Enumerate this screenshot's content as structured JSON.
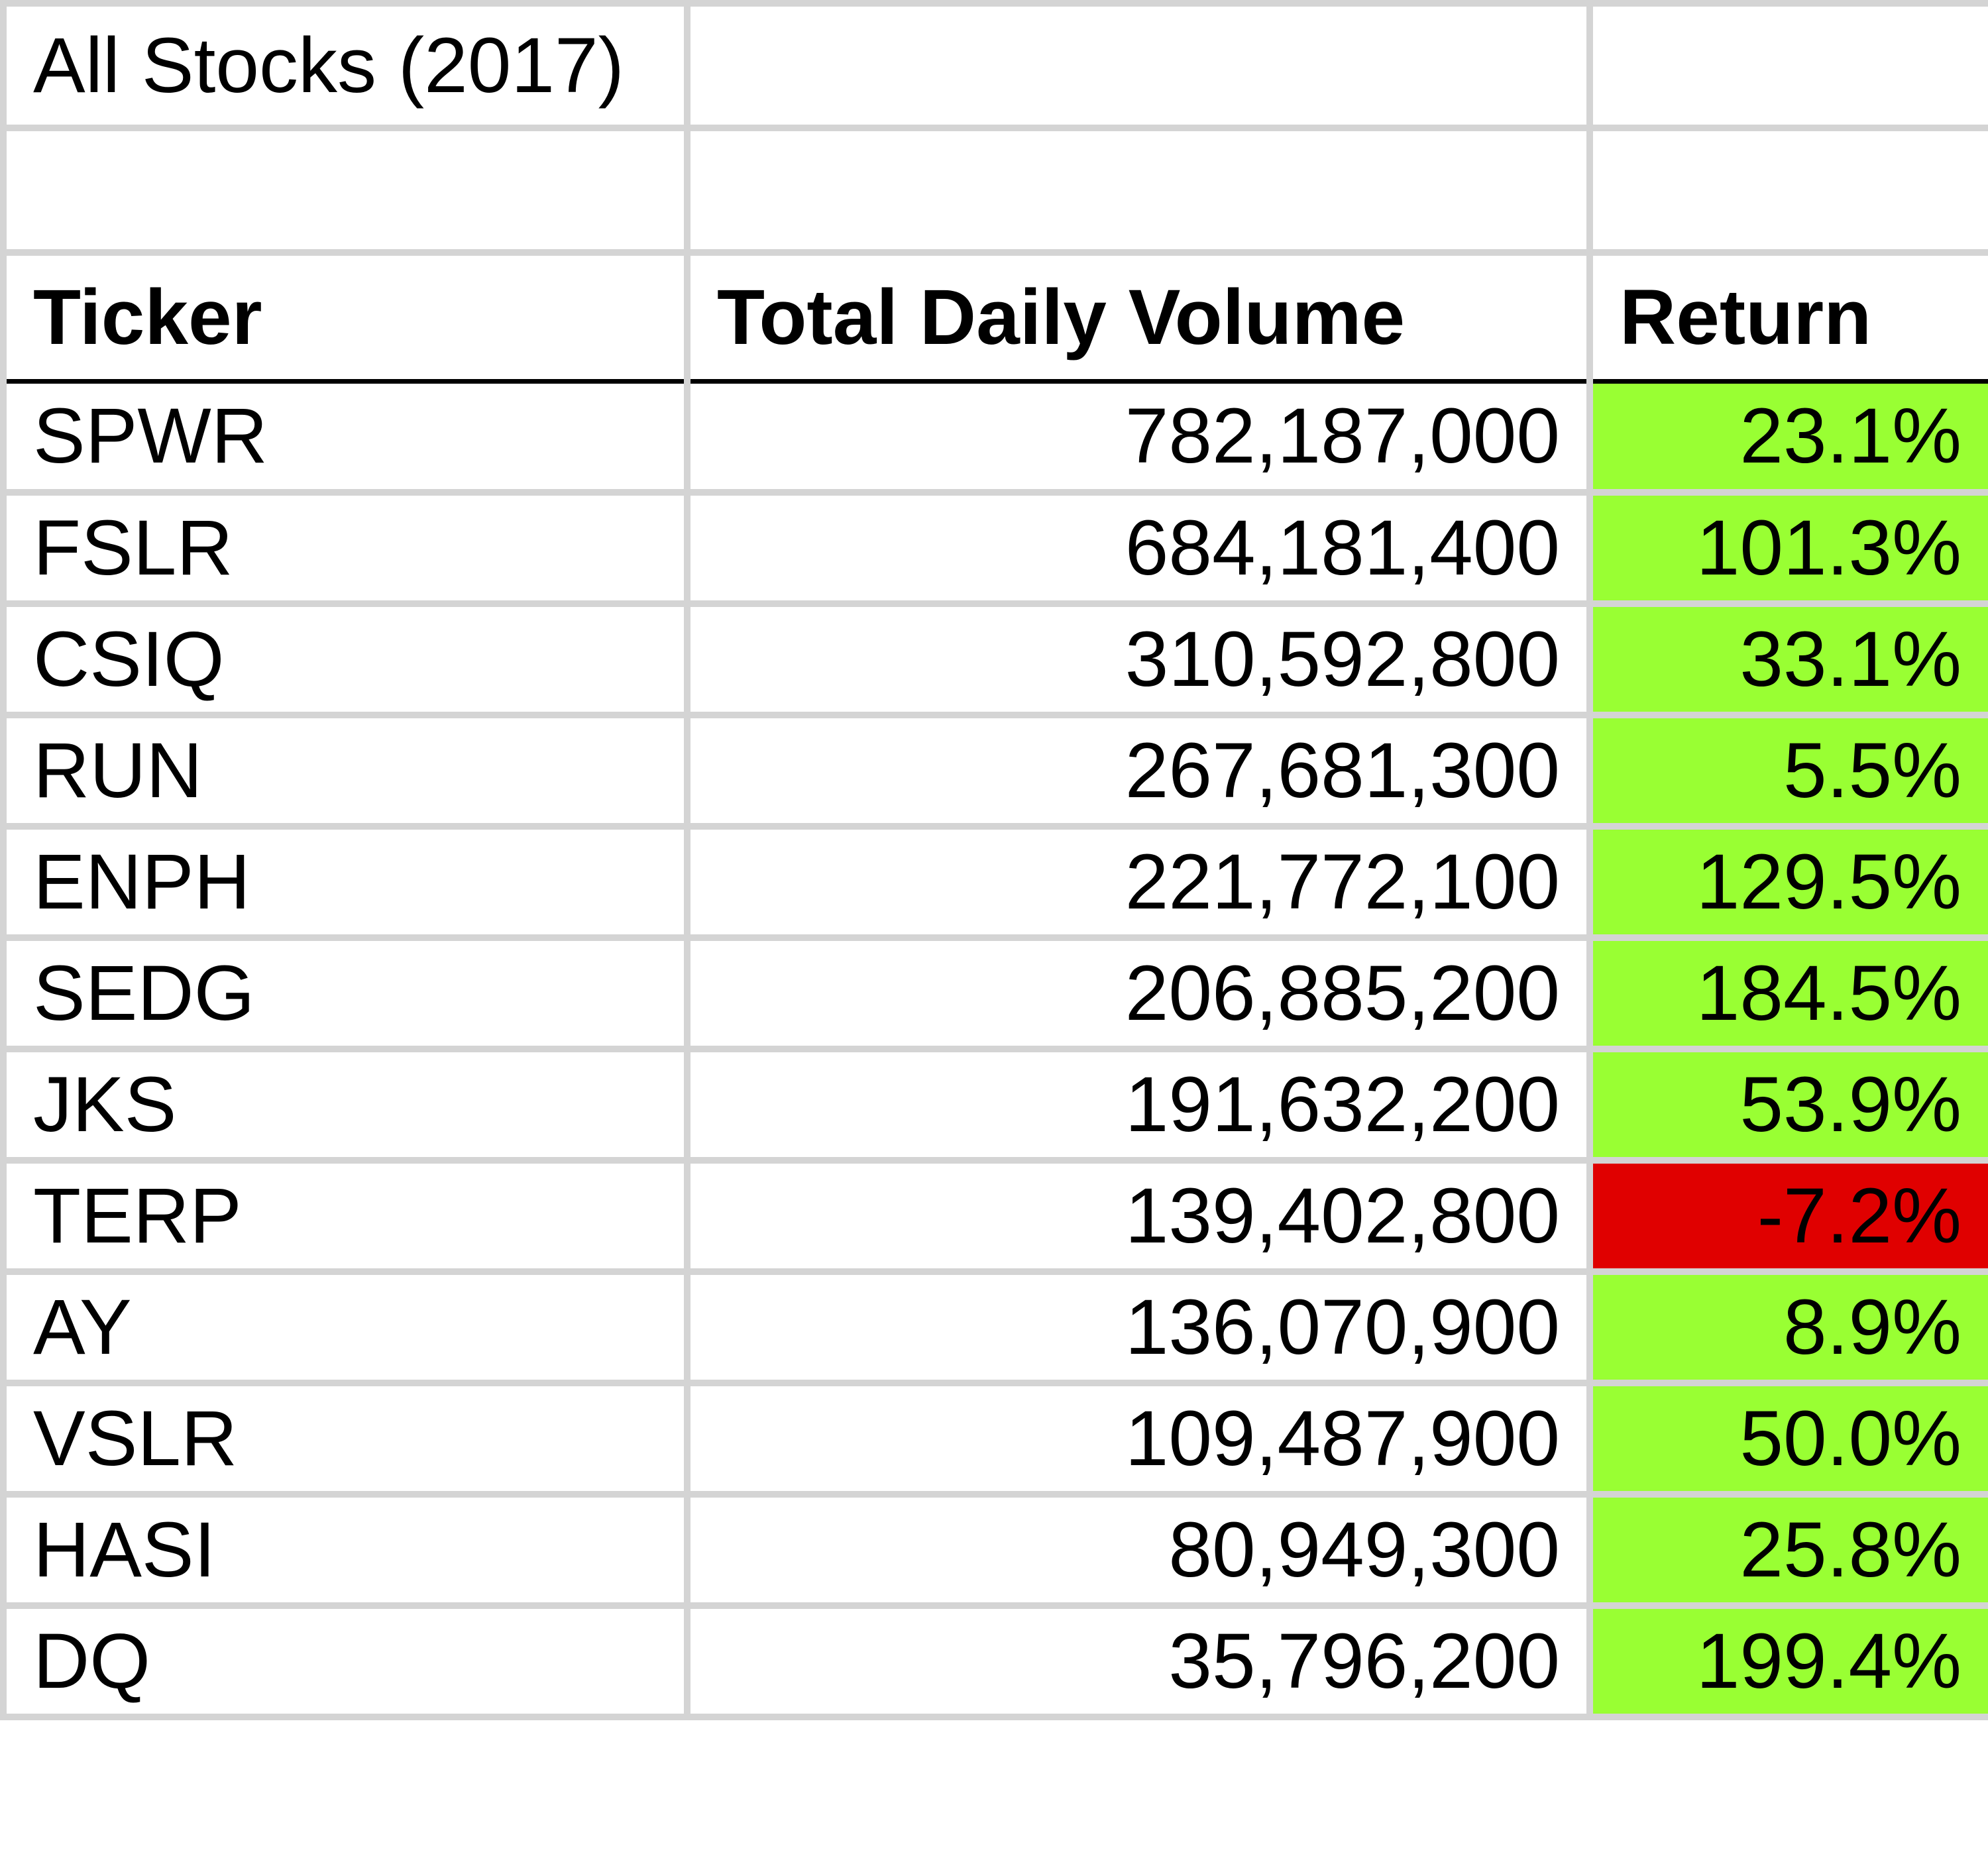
{
  "sheet": {
    "title": "All Stocks (2017)",
    "headers": {
      "ticker": "Ticker",
      "volume": "Total Daily Volume",
      "return": "Return"
    },
    "colors": {
      "positive_fill": "#99ff33",
      "negative_fill": "#e00000",
      "gridline": "#d4d4d4",
      "header_rule": "#000000"
    },
    "rows": [
      {
        "ticker": "SPWR",
        "volume": "782,187,000",
        "return": "23.1%",
        "status": "positive"
      },
      {
        "ticker": "FSLR",
        "volume": "684,181,400",
        "return": "101.3%",
        "status": "positive"
      },
      {
        "ticker": "CSIQ",
        "volume": "310,592,800",
        "return": "33.1%",
        "status": "positive"
      },
      {
        "ticker": "RUN",
        "volume": "267,681,300",
        "return": "5.5%",
        "status": "positive"
      },
      {
        "ticker": "ENPH",
        "volume": "221,772,100",
        "return": "129.5%",
        "status": "positive"
      },
      {
        "ticker": "SEDG",
        "volume": "206,885,200",
        "return": "184.5%",
        "status": "positive"
      },
      {
        "ticker": "JKS",
        "volume": "191,632,200",
        "return": "53.9%",
        "status": "positive"
      },
      {
        "ticker": "TERP",
        "volume": "139,402,800",
        "return": "-7.2%",
        "status": "negative"
      },
      {
        "ticker": "AY",
        "volume": "136,070,900",
        "return": "8.9%",
        "status": "positive"
      },
      {
        "ticker": "VSLR",
        "volume": "109,487,900",
        "return": "50.0%",
        "status": "positive"
      },
      {
        "ticker": "HASI",
        "volume": "80,949,300",
        "return": "25.8%",
        "status": "positive"
      },
      {
        "ticker": "DQ",
        "volume": "35,796,200",
        "return": "199.4%",
        "status": "positive"
      }
    ]
  }
}
